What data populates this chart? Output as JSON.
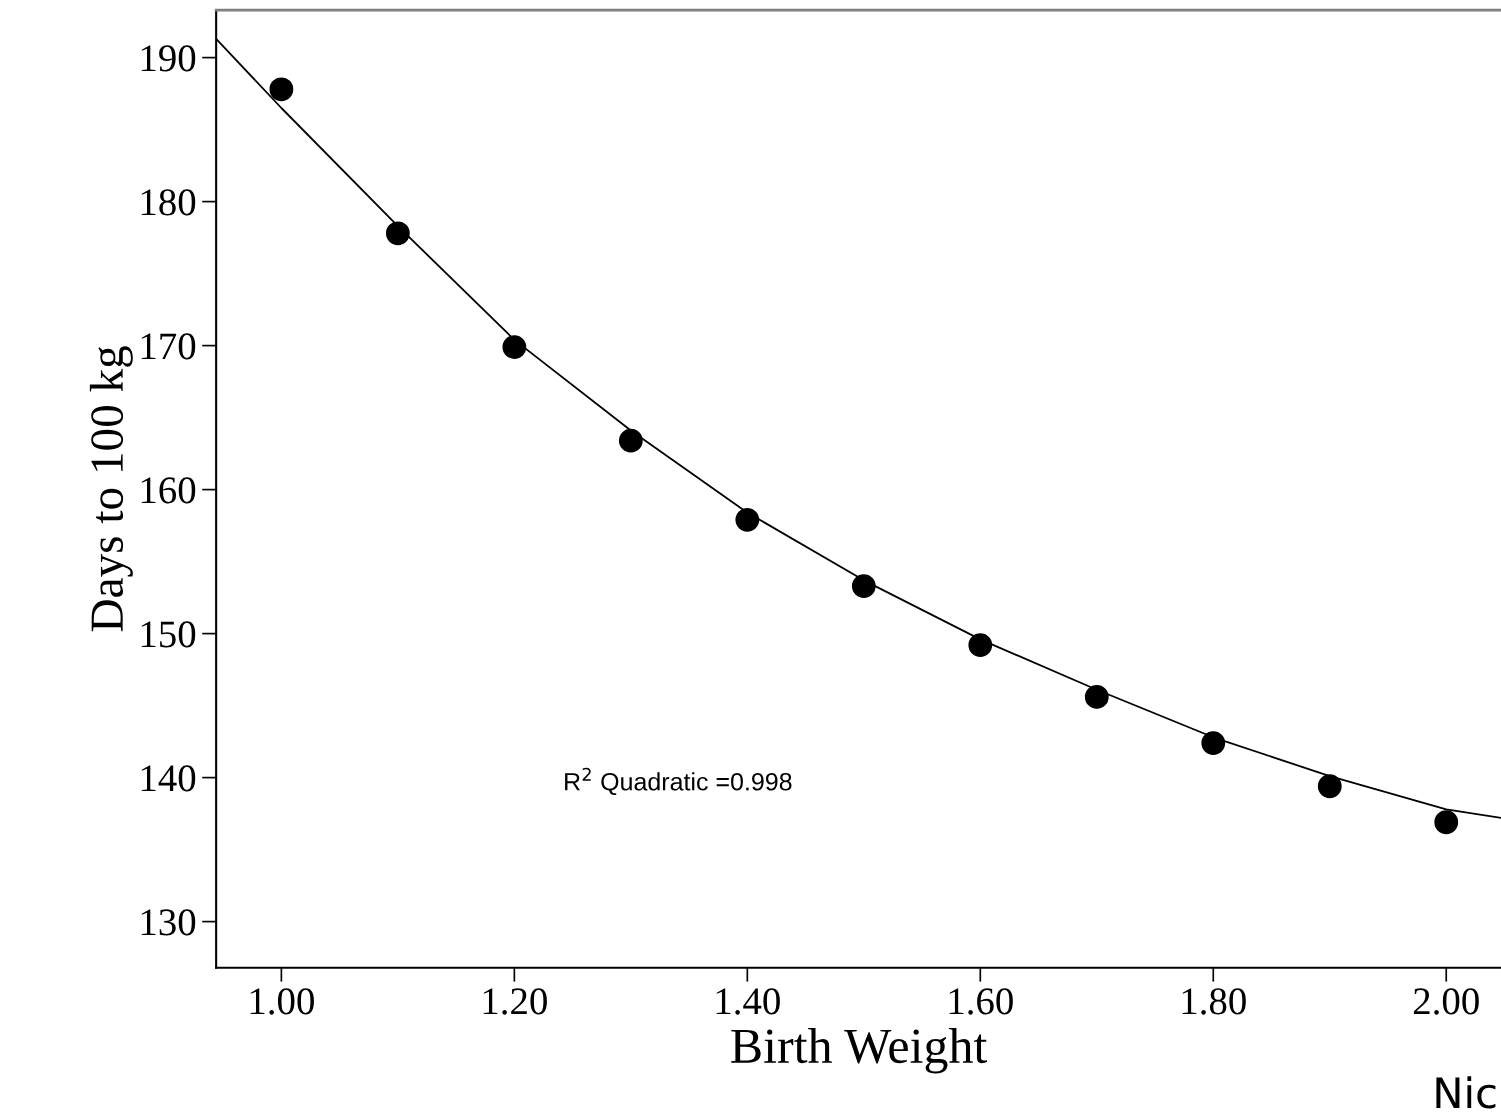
{
  "chart_data": {
    "type": "scatter",
    "xlabel": "Birth Weight",
    "ylabel": "Days to 100 kg",
    "x": [
      1.0,
      1.1,
      1.2,
      1.3,
      1.4,
      1.5,
      1.6,
      1.7,
      1.8,
      1.9,
      2.0
    ],
    "series": [
      {
        "color": "#000000",
        "marker": "circle",
        "values": [
          187.8,
          177.8,
          169.9,
          163.4,
          157.9,
          153.3,
          149.2,
          145.6,
          142.4,
          139.4,
          136.9
        ]
      },
      {
        "type": "line",
        "color": "#000000",
        "line_style": "solid",
        "marker": "none",
        "x": [
          0.944,
          1.0,
          1.1,
          1.2,
          1.3,
          1.4,
          1.5,
          1.6,
          1.7,
          1.8,
          1.9,
          2.0,
          2.047
        ],
        "values": [
          191.3,
          186.5,
          178.3,
          170.4,
          164.1,
          158.4,
          153.7,
          149.6,
          146.1,
          142.8,
          140.1,
          137.8,
          137.2
        ]
      }
    ],
    "xlim": [
      0.944,
      2.047
    ],
    "ylim": [
      126.8,
      193.3
    ],
    "xticks": [
      {
        "value": 1.0,
        "label": "1.00"
      },
      {
        "value": 1.2,
        "label": "1.20"
      },
      {
        "value": 1.4,
        "label": "1.40"
      },
      {
        "value": 1.6,
        "label": "1.60"
      },
      {
        "value": 1.8,
        "label": "1.80"
      },
      {
        "value": 2.0,
        "label": "2.00"
      }
    ],
    "yticks": [
      130,
      140,
      150,
      160,
      170,
      180,
      190
    ],
    "grid": false,
    "legend": false,
    "annotations": [
      "R$^{2}$ Quadratic =0.998",
      "Nic"
    ]
  }
}
